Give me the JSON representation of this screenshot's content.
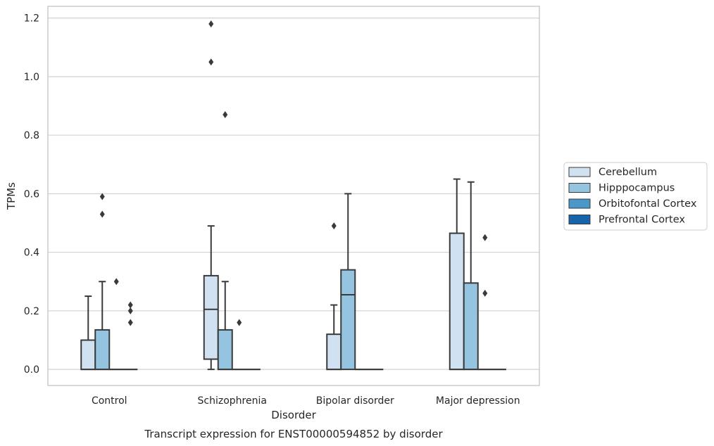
{
  "chart_data": {
    "type": "boxplot",
    "caption": "Transcript expression for ENST00000594852 by disorder",
    "xlabel": "Disorder",
    "ylabel": "TPMs",
    "categories": [
      "Control",
      "Schizophrenia",
      "Bipolar disorder",
      "Major depression"
    ],
    "ylim": [
      -0.055,
      1.24
    ],
    "yticks": [
      "0.0",
      "0.2",
      "0.4",
      "0.6",
      "0.8",
      "1.0",
      "1.2"
    ],
    "grid": "horizontal",
    "legend_position": "right",
    "series": [
      {
        "name": "Cerebellum",
        "color": "#d0e1f2",
        "boxes": [
          {
            "q1": 0,
            "median": 0,
            "q3": 0.1,
            "whisker_low": 0,
            "whisker_high": 0.25,
            "outliers": []
          },
          {
            "q1": 0.035,
            "median": 0.205,
            "q3": 0.32,
            "whisker_low": 0,
            "whisker_high": 0.49,
            "outliers": [
              1.18,
              1.05
            ]
          },
          {
            "q1": 0,
            "median": 0,
            "q3": 0.12,
            "whisker_low": 0,
            "whisker_high": 0.22,
            "outliers": [
              0.49
            ]
          },
          {
            "q1": 0,
            "median": 0,
            "q3": 0.465,
            "whisker_low": 0,
            "whisker_high": 0.65,
            "outliers": []
          }
        ]
      },
      {
        "name": "Hipppocampus",
        "color": "#94c4df",
        "boxes": [
          {
            "q1": 0,
            "median": 0,
            "q3": 0.135,
            "whisker_low": 0,
            "whisker_high": 0.3,
            "outliers": [
              0.59,
              0.53
            ]
          },
          {
            "q1": 0,
            "median": 0,
            "q3": 0.135,
            "whisker_low": 0,
            "whisker_high": 0.3,
            "outliers": [
              0.87
            ]
          },
          {
            "q1": 0,
            "median": 0.255,
            "q3": 0.34,
            "whisker_low": 0,
            "whisker_high": 0.6,
            "outliers": []
          },
          {
            "q1": 0,
            "median": 0,
            "q3": 0.295,
            "whisker_low": 0,
            "whisker_high": 0.64,
            "outliers": []
          }
        ]
      },
      {
        "name": "Orbitofontal Cortex",
        "color": "#4a98c9",
        "boxes": [
          {
            "q1": 0,
            "median": 0,
            "q3": 0,
            "whisker_low": 0,
            "whisker_high": 0,
            "outliers": [
              0.3
            ]
          },
          {
            "q1": 0,
            "median": 0,
            "q3": 0,
            "whisker_low": 0,
            "whisker_high": 0,
            "outliers": [
              0.16
            ]
          },
          {
            "q1": 0,
            "median": 0,
            "q3": 0,
            "whisker_low": 0,
            "whisker_high": 0,
            "outliers": []
          },
          {
            "q1": 0,
            "median": 0,
            "q3": 0,
            "whisker_low": 0,
            "whisker_high": 0,
            "outliers": [
              0.45,
              0.26
            ]
          }
        ]
      },
      {
        "name": "Prefrontal Cortex",
        "color": "#1764ab",
        "boxes": [
          {
            "q1": 0,
            "median": 0,
            "q3": 0,
            "whisker_low": 0,
            "whisker_high": 0,
            "outliers": [
              0.22,
              0.2,
              0.16
            ]
          },
          {
            "q1": 0,
            "median": 0,
            "q3": 0,
            "whisker_low": 0,
            "whisker_high": 0,
            "outliers": []
          },
          {
            "q1": 0,
            "median": 0,
            "q3": 0,
            "whisker_low": 0,
            "whisker_high": 0,
            "outliers": []
          },
          {
            "q1": 0,
            "median": 0,
            "q3": 0,
            "whisker_low": 0,
            "whisker_high": 0,
            "outliers": []
          }
        ]
      }
    ]
  }
}
